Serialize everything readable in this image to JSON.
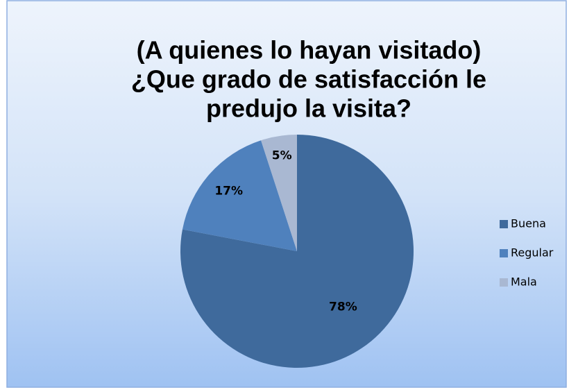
{
  "chart_data": {
    "type": "pie",
    "title": [
      "(A quienes lo hayan visitado)",
      "¿Que grado de satisfacción le",
      "predujo la visita?"
    ],
    "categories": [
      "Buena",
      "Regular",
      "Mala"
    ],
    "values": [
      78,
      17,
      5
    ],
    "value_labels": [
      "78%",
      "17%",
      "5%"
    ],
    "colors": [
      "#3f6a9c",
      "#4f81bd",
      "#a9b8d2"
    ],
    "legend": "right"
  }
}
